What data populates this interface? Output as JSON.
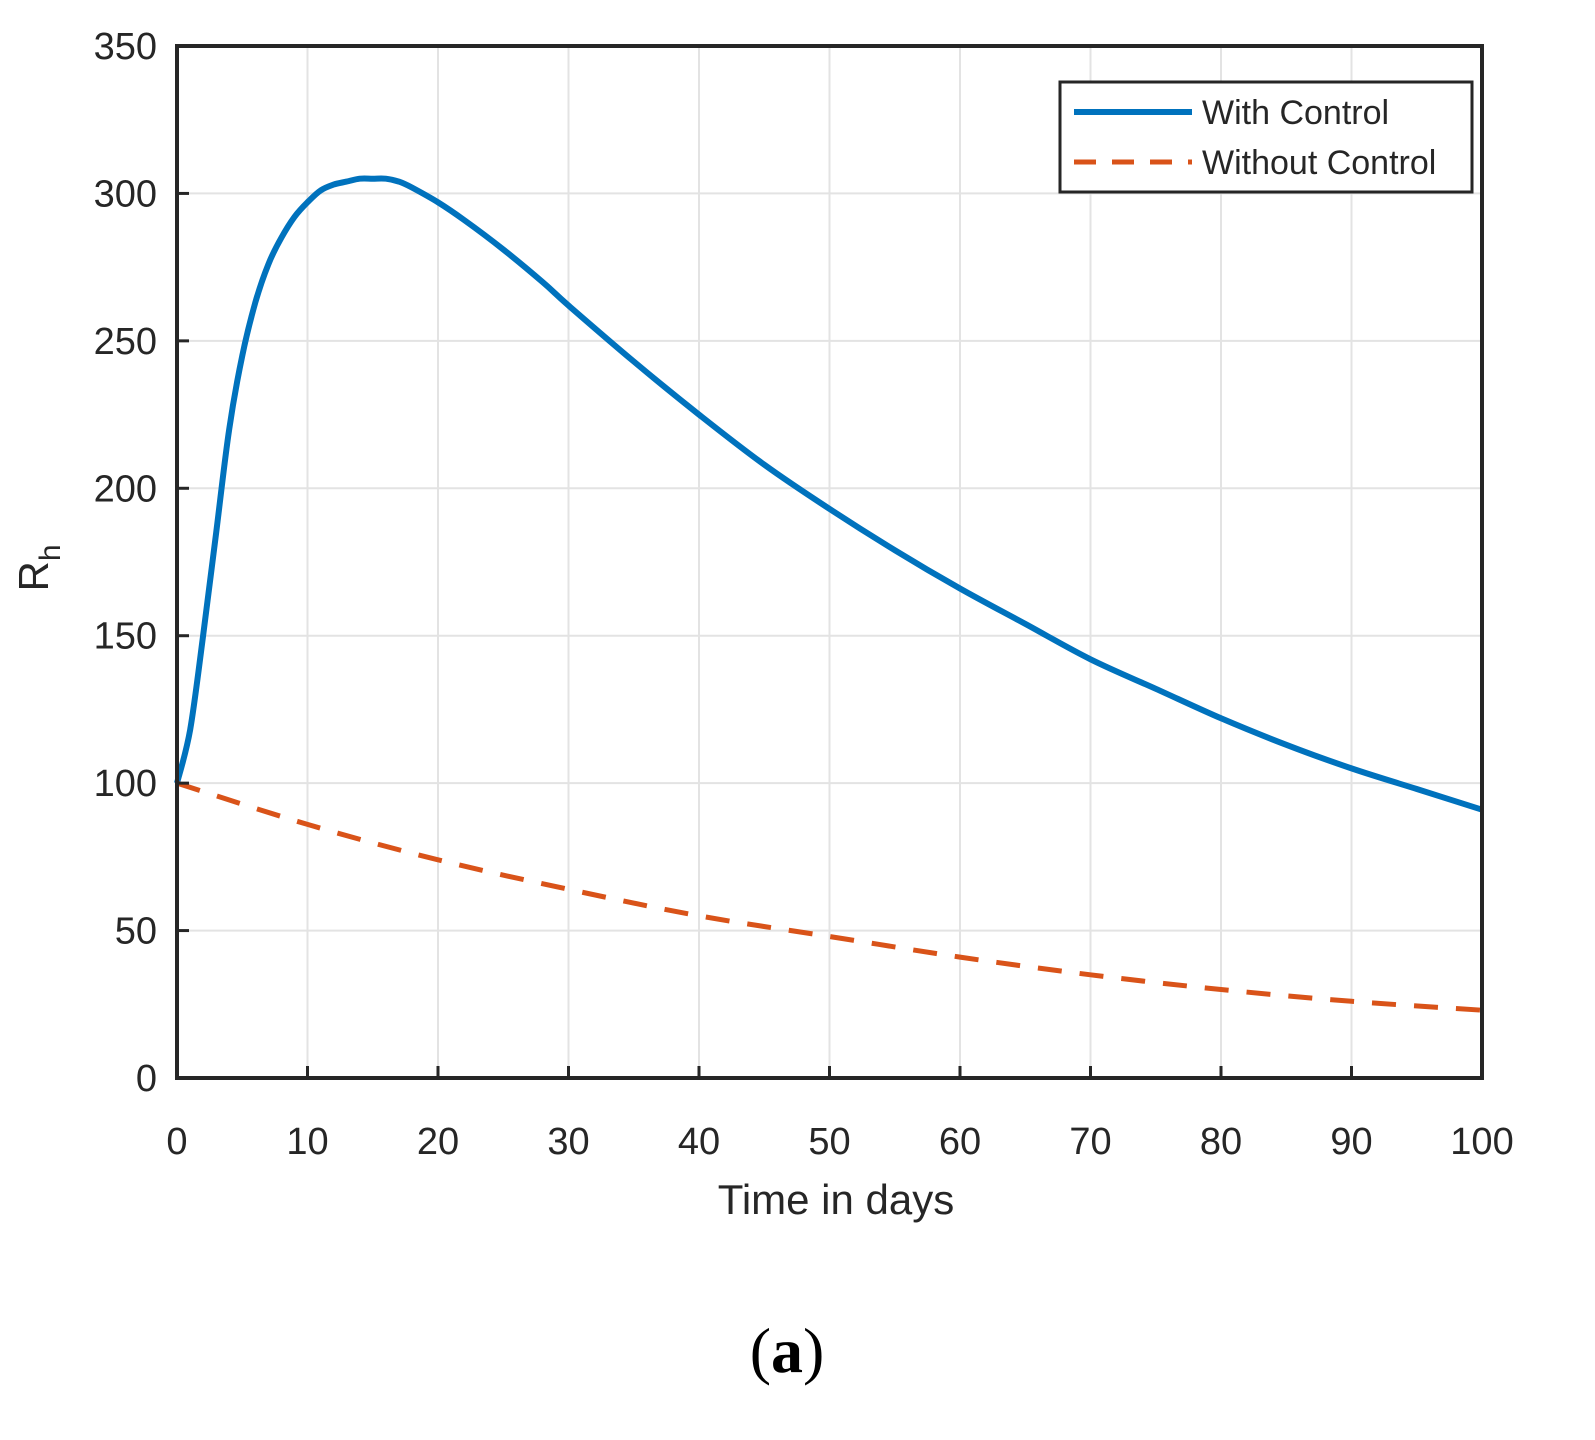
{
  "chart_data": {
    "type": "line",
    "xlabel": "Time in days",
    "ylabel_main": "R",
    "ylabel_sub": "h",
    "xlim": [
      0,
      100
    ],
    "ylim": [
      0,
      350
    ],
    "xticks": [
      "0",
      "10",
      "20",
      "30",
      "40",
      "50",
      "60",
      "70",
      "80",
      "90",
      "100"
    ],
    "yticks": [
      "0",
      "50",
      "100",
      "150",
      "200",
      "250",
      "300",
      "350"
    ],
    "grid": true,
    "legend_position": "top-right",
    "series": [
      {
        "name": "With Control",
        "color": "#0072BD",
        "style": "solid",
        "x": [
          0,
          1,
          2,
          3,
          4,
          5,
          6,
          7,
          8,
          9,
          10,
          11,
          12,
          13,
          14,
          15,
          16,
          17,
          18,
          20,
          22,
          25,
          28,
          30,
          35,
          40,
          45,
          50,
          55,
          60,
          65,
          70,
          75,
          80,
          85,
          90,
          95,
          100
        ],
        "y": [
          100,
          118,
          150,
          185,
          220,
          245,
          263,
          276,
          285,
          292,
          297,
          301,
          303,
          304,
          305,
          305,
          305,
          304,
          302,
          297,
          291,
          281,
          270,
          262,
          243,
          225,
          208,
          193,
          179,
          166,
          154,
          142,
          132,
          122,
          113,
          105,
          98,
          91
        ]
      },
      {
        "name": "Without Control",
        "color": "#D95319",
        "style": "dashed",
        "x": [
          0,
          10,
          20,
          30,
          40,
          50,
          60,
          70,
          80,
          90,
          100
        ],
        "y": [
          100,
          86,
          74,
          64,
          55,
          48,
          41,
          35,
          30,
          26,
          23
        ]
      }
    ]
  },
  "panel_label": {
    "open": "(",
    "letter": "a",
    "close": ")"
  }
}
